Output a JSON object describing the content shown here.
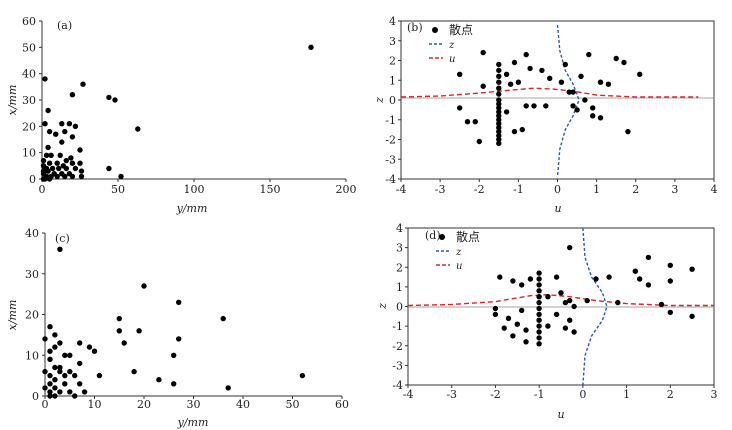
{
  "chart_data": [
    {
      "id": "a",
      "type": "scatter",
      "panel_label": "(a)",
      "xlabel": "y/mm",
      "ylabel": "x/mm",
      "xlim": [
        0,
        200
      ],
      "ylim": [
        0,
        60
      ],
      "xticks": [
        0,
        50,
        100,
        150,
        200
      ],
      "yticks": [
        0,
        10,
        20,
        30,
        40,
        50,
        60
      ],
      "points": [
        [
          177,
          50
        ],
        [
          2,
          38
        ],
        [
          27,
          36
        ],
        [
          44,
          31
        ],
        [
          48,
          30
        ],
        [
          20,
          32
        ],
        [
          63,
          19
        ],
        [
          4,
          26
        ],
        [
          2,
          21
        ],
        [
          13,
          21
        ],
        [
          18,
          21
        ],
        [
          22,
          20
        ],
        [
          15,
          18
        ],
        [
          5,
          18
        ],
        [
          9,
          17
        ],
        [
          20,
          16
        ],
        [
          13,
          14
        ],
        [
          4,
          12
        ],
        [
          25,
          11
        ],
        [
          3,
          9
        ],
        [
          6,
          9
        ],
        [
          12,
          9
        ],
        [
          19,
          8
        ],
        [
          16,
          7
        ],
        [
          1,
          7
        ],
        [
          5,
          6
        ],
        [
          10,
          6
        ],
        [
          14,
          5
        ],
        [
          20,
          6
        ],
        [
          25,
          6
        ],
        [
          1,
          5
        ],
        [
          3,
          4
        ],
        [
          7,
          4
        ],
        [
          11,
          4
        ],
        [
          16,
          4
        ],
        [
          22,
          4
        ],
        [
          1,
          3
        ],
        [
          4,
          3
        ],
        [
          8,
          2
        ],
        [
          13,
          2
        ],
        [
          18,
          2
        ],
        [
          26,
          3
        ],
        [
          1,
          2
        ],
        [
          3,
          1
        ],
        [
          6,
          1
        ],
        [
          10,
          1
        ],
        [
          15,
          1
        ],
        [
          20,
          1
        ],
        [
          26,
          1
        ],
        [
          44,
          4
        ],
        [
          52,
          1
        ],
        [
          1,
          0
        ],
        [
          2,
          0
        ],
        [
          5,
          0
        ]
      ]
    },
    {
      "id": "b",
      "type": "scatter+line",
      "panel_label": "(b)",
      "xlabel": "u",
      "ylabel": "z",
      "xlim": [
        -4,
        4
      ],
      "ylim": [
        -4,
        4
      ],
      "xticks": [
        -4,
        -3,
        -2,
        -1,
        0,
        1,
        2,
        3,
        4
      ],
      "yticks": [
        -4,
        -3,
        -2,
        -1,
        0,
        1,
        2,
        3,
        4
      ],
      "legend": [
        {
          "key": "scatter",
          "label": "散点"
        },
        {
          "key": "z",
          "label": "z"
        },
        {
          "key": "u",
          "label": "u"
        }
      ],
      "colors": {
        "z": "#2b58b8",
        "u": "#d62828"
      },
      "points": [
        [
          -1.5,
          1.8
        ],
        [
          -1.5,
          1.5
        ],
        [
          -1.5,
          1.2
        ],
        [
          -1.5,
          0.9
        ],
        [
          -1.5,
          0.6
        ],
        [
          -1.5,
          0.3
        ],
        [
          -1.5,
          0
        ],
        [
          -1.5,
          -0.2
        ],
        [
          -1.5,
          -0.4
        ],
        [
          -1.5,
          -0.6
        ],
        [
          -1.5,
          -0.8
        ],
        [
          -1.5,
          -1
        ],
        [
          -1.5,
          -1.2
        ],
        [
          -1.5,
          -1.4
        ],
        [
          -1.5,
          -1.6
        ],
        [
          -1.5,
          -1.8
        ],
        [
          -1.5,
          -2
        ],
        [
          -1.5,
          -2.2
        ],
        [
          -1.3,
          -0.6
        ],
        [
          -1.3,
          1.3
        ],
        [
          -1.1,
          1.9
        ],
        [
          -1,
          0.9
        ],
        [
          -0.8,
          -0.3
        ],
        [
          -0.6,
          -0.3
        ],
        [
          -0.3,
          -0.3
        ],
        [
          -0.2,
          1.1
        ],
        [
          0.1,
          0.9
        ],
        [
          0.2,
          1.8
        ],
        [
          0.3,
          0.4
        ],
        [
          0.4,
          -0.3
        ],
        [
          0.5,
          -0.5
        ],
        [
          0.6,
          1.2
        ],
        [
          0.7,
          0
        ],
        [
          0.9,
          -0.4
        ],
        [
          1.1,
          0.9
        ],
        [
          1.1,
          -0.9
        ],
        [
          1.3,
          0.8
        ],
        [
          1.5,
          2.1
        ],
        [
          1.7,
          1.9
        ],
        [
          2.1,
          1.3
        ],
        [
          1.8,
          -1.6
        ],
        [
          -0.8,
          2.3
        ],
        [
          -1.9,
          2.4
        ],
        [
          -2.5,
          1.3
        ],
        [
          -2.5,
          -0.4
        ],
        [
          -2.3,
          -1.1
        ],
        [
          -2.1,
          -1.1
        ],
        [
          -2,
          -2.1
        ],
        [
          -1.9,
          0.7
        ],
        [
          -1.2,
          0.8
        ],
        [
          -0.7,
          1.6
        ],
        [
          -0.4,
          1.5
        ],
        [
          0.8,
          2.3
        ],
        [
          0.4,
          0.4
        ],
        [
          0.9,
          -0.8
        ],
        [
          -1.1,
          -1.6
        ],
        [
          -0.9,
          -1.5
        ]
      ],
      "curve_z": {
        "x": [
          0,
          0.06,
          0.2,
          0.4,
          0.55,
          0.4,
          0.2,
          0.06,
          0
        ],
        "y": [
          3.8,
          2.5,
          1.5,
          0.8,
          0,
          -0.8,
          -1.5,
          -2.5,
          -3.9
        ]
      },
      "curve_u": {
        "x": [
          -4,
          -3,
          -2,
          -1.2,
          -0.6,
          -0.1,
          0.4,
          1,
          2,
          3.6
        ],
        "y": [
          0.15,
          0.2,
          0.35,
          0.5,
          0.6,
          0.55,
          0.45,
          0.25,
          0.15,
          0.15
        ]
      }
    },
    {
      "id": "c",
      "type": "scatter",
      "panel_label": "(c)",
      "xlabel": "y/mm",
      "ylabel": "x/mm",
      "xlim": [
        0,
        60
      ],
      "ylim": [
        0,
        40
      ],
      "xticks": [
        0,
        10,
        20,
        30,
        40,
        50,
        60
      ],
      "yticks": [
        0,
        10,
        20,
        30,
        40
      ],
      "points": [
        [
          3,
          36
        ],
        [
          20,
          27
        ],
        [
          27,
          23
        ],
        [
          15,
          19
        ],
        [
          36,
          19
        ],
        [
          1,
          17
        ],
        [
          19,
          16
        ],
        [
          15,
          16
        ],
        [
          27,
          14
        ],
        [
          2,
          15
        ],
        [
          3,
          13
        ],
        [
          9,
          12
        ],
        [
          7,
          13
        ],
        [
          5,
          10
        ],
        [
          26,
          10
        ],
        [
          10,
          11
        ],
        [
          16,
          13
        ],
        [
          1,
          11
        ],
        [
          4,
          10
        ],
        [
          18,
          6
        ],
        [
          52,
          5
        ],
        [
          11,
          5
        ],
        [
          23,
          4
        ],
        [
          26,
          3
        ],
        [
          37,
          2
        ],
        [
          1,
          9
        ],
        [
          2,
          7
        ],
        [
          3,
          6
        ],
        [
          4,
          5
        ],
        [
          5,
          6
        ],
        [
          6,
          5
        ],
        [
          2,
          4
        ],
        [
          4,
          3
        ],
        [
          7,
          3
        ],
        [
          1,
          3
        ],
        [
          2,
          2
        ],
        [
          3,
          1
        ],
        [
          5,
          1
        ],
        [
          8,
          1
        ],
        [
          1,
          1
        ],
        [
          1,
          0
        ],
        [
          2,
          0
        ],
        [
          6,
          0
        ],
        [
          7,
          8
        ],
        [
          3,
          7
        ],
        [
          1,
          5
        ],
        [
          2,
          12
        ],
        [
          0,
          6
        ],
        [
          0,
          14
        ],
        [
          0,
          2
        ]
      ]
    },
    {
      "id": "d",
      "type": "scatter+line",
      "panel_label": "(d)",
      "xlabel": "u",
      "ylabel": "z",
      "xlim": [
        -4,
        3
      ],
      "ylim": [
        -4,
        4
      ],
      "xticks": [
        -4,
        -3,
        -2,
        -1,
        0,
        1,
        2,
        3
      ],
      "yticks": [
        -4,
        -3,
        -2,
        -1,
        0,
        1,
        2,
        3,
        4
      ],
      "legend": [
        {
          "key": "scatter",
          "label": "散点"
        },
        {
          "key": "z",
          "label": "z"
        },
        {
          "key": "u",
          "label": "u"
        }
      ],
      "colors": {
        "z": "#2b58b8",
        "u": "#d62828"
      },
      "points": [
        [
          -1,
          1.7
        ],
        [
          -1,
          1.4
        ],
        [
          -1,
          1.1
        ],
        [
          -1,
          0.8
        ],
        [
          -1,
          0.5
        ],
        [
          -1,
          0.2
        ],
        [
          -1,
          -0.1
        ],
        [
          -1,
          -0.4
        ],
        [
          -1,
          -0.7
        ],
        [
          -1,
          -1
        ],
        [
          -1,
          -1.3
        ],
        [
          -1,
          -1.6
        ],
        [
          -1,
          -1.9
        ],
        [
          -0.3,
          3
        ],
        [
          -1.9,
          1.5
        ],
        [
          -1.2,
          1.4
        ],
        [
          -1.6,
          1.3
        ],
        [
          -1.4,
          1.1
        ],
        [
          -0.6,
          1.5
        ],
        [
          -0.8,
          0.5
        ],
        [
          -0.4,
          0.2
        ],
        [
          -0.3,
          0.3
        ],
        [
          -0.2,
          0
        ],
        [
          0.1,
          0.3
        ],
        [
          -2,
          -0.1
        ],
        [
          -2,
          -0.4
        ],
        [
          -1.7,
          -0.6
        ],
        [
          -1.5,
          -0.9
        ],
        [
          -1.3,
          -1.2
        ],
        [
          -1.6,
          -1.5
        ],
        [
          -1.3,
          -1.8
        ],
        [
          -1.8,
          -1.1
        ],
        [
          -0.6,
          -0.4
        ],
        [
          -0.3,
          -0.7
        ],
        [
          -0.4,
          -1.1
        ],
        [
          -0.2,
          -1.3
        ],
        [
          0.3,
          1.4
        ],
        [
          0.6,
          1.5
        ],
        [
          1.2,
          1.8
        ],
        [
          1.3,
          1.4
        ],
        [
          1.5,
          2.5
        ],
        [
          1.5,
          1.1
        ],
        [
          2,
          2.1
        ],
        [
          2,
          1.3
        ],
        [
          2.5,
          1.9
        ],
        [
          1.8,
          0.1
        ],
        [
          2,
          -0.3
        ],
        [
          2.5,
          -0.5
        ],
        [
          0.8,
          0.2
        ],
        [
          -0.8,
          -1
        ],
        [
          -1.4,
          -0.2
        ],
        [
          -0.5,
          0.7
        ]
      ],
      "curve_z": {
        "x": [
          0,
          0.05,
          0.2,
          0.45,
          0.55,
          0.45,
          0.2,
          0.05,
          0
        ],
        "y": [
          4,
          2.5,
          1.5,
          0.7,
          0,
          -0.7,
          -1.5,
          -2.5,
          -4
        ]
      },
      "curve_u": {
        "x": [
          -4,
          -3,
          -2,
          -1.2,
          -0.8,
          -0.3,
          0.3,
          1,
          2,
          3
        ],
        "y": [
          0.05,
          0.1,
          0.25,
          0.55,
          0.6,
          0.5,
          0.3,
          0.15,
          0.05,
          0.05
        ]
      }
    }
  ]
}
